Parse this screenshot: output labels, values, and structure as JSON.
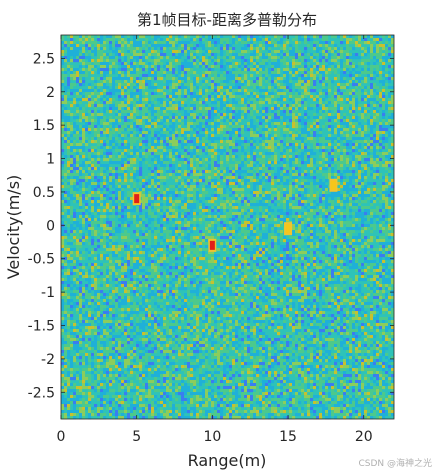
{
  "chart_data": {
    "type": "heatmap",
    "title": "第1帧目标-距离多普勒分布",
    "xlabel": "Range(m)",
    "ylabel": "Velocity(m/s)",
    "xlim": [
      0,
      22
    ],
    "ylim": [
      -2.9,
      2.85
    ],
    "x_ticks": [
      "0",
      "5",
      "10",
      "15",
      "20"
    ],
    "y_ticks": [
      "2.5",
      "2",
      "1.5",
      "1",
      "0.5",
      "0",
      "-0.5",
      "-1",
      "-1.5",
      "-2",
      "-2.5"
    ],
    "x_tick_values": [
      0,
      5,
      10,
      15,
      20
    ],
    "y_tick_values": [
      2.5,
      2,
      1.5,
      1,
      0.5,
      0,
      -0.5,
      -1,
      -1.5,
      -2,
      -2.5
    ],
    "grid": false,
    "colormap": "parula",
    "background_colors": [
      "#3a7df0",
      "#1fb0d8",
      "#2ec3b8",
      "#4cc98c",
      "#8ccd5c",
      "#c7c12f"
    ],
    "targets": [
      {
        "range": 5.0,
        "velocity": 0.4,
        "color": "#e0201a"
      },
      {
        "range": 10.0,
        "velocity": -0.3,
        "color": "#e0201a"
      },
      {
        "range": 15.0,
        "velocity": -0.05,
        "color": "#f5c61a"
      },
      {
        "range": 18.0,
        "velocity": 0.6,
        "color": "#f5c61a"
      }
    ]
  },
  "watermark": "CSDN @海神之光"
}
